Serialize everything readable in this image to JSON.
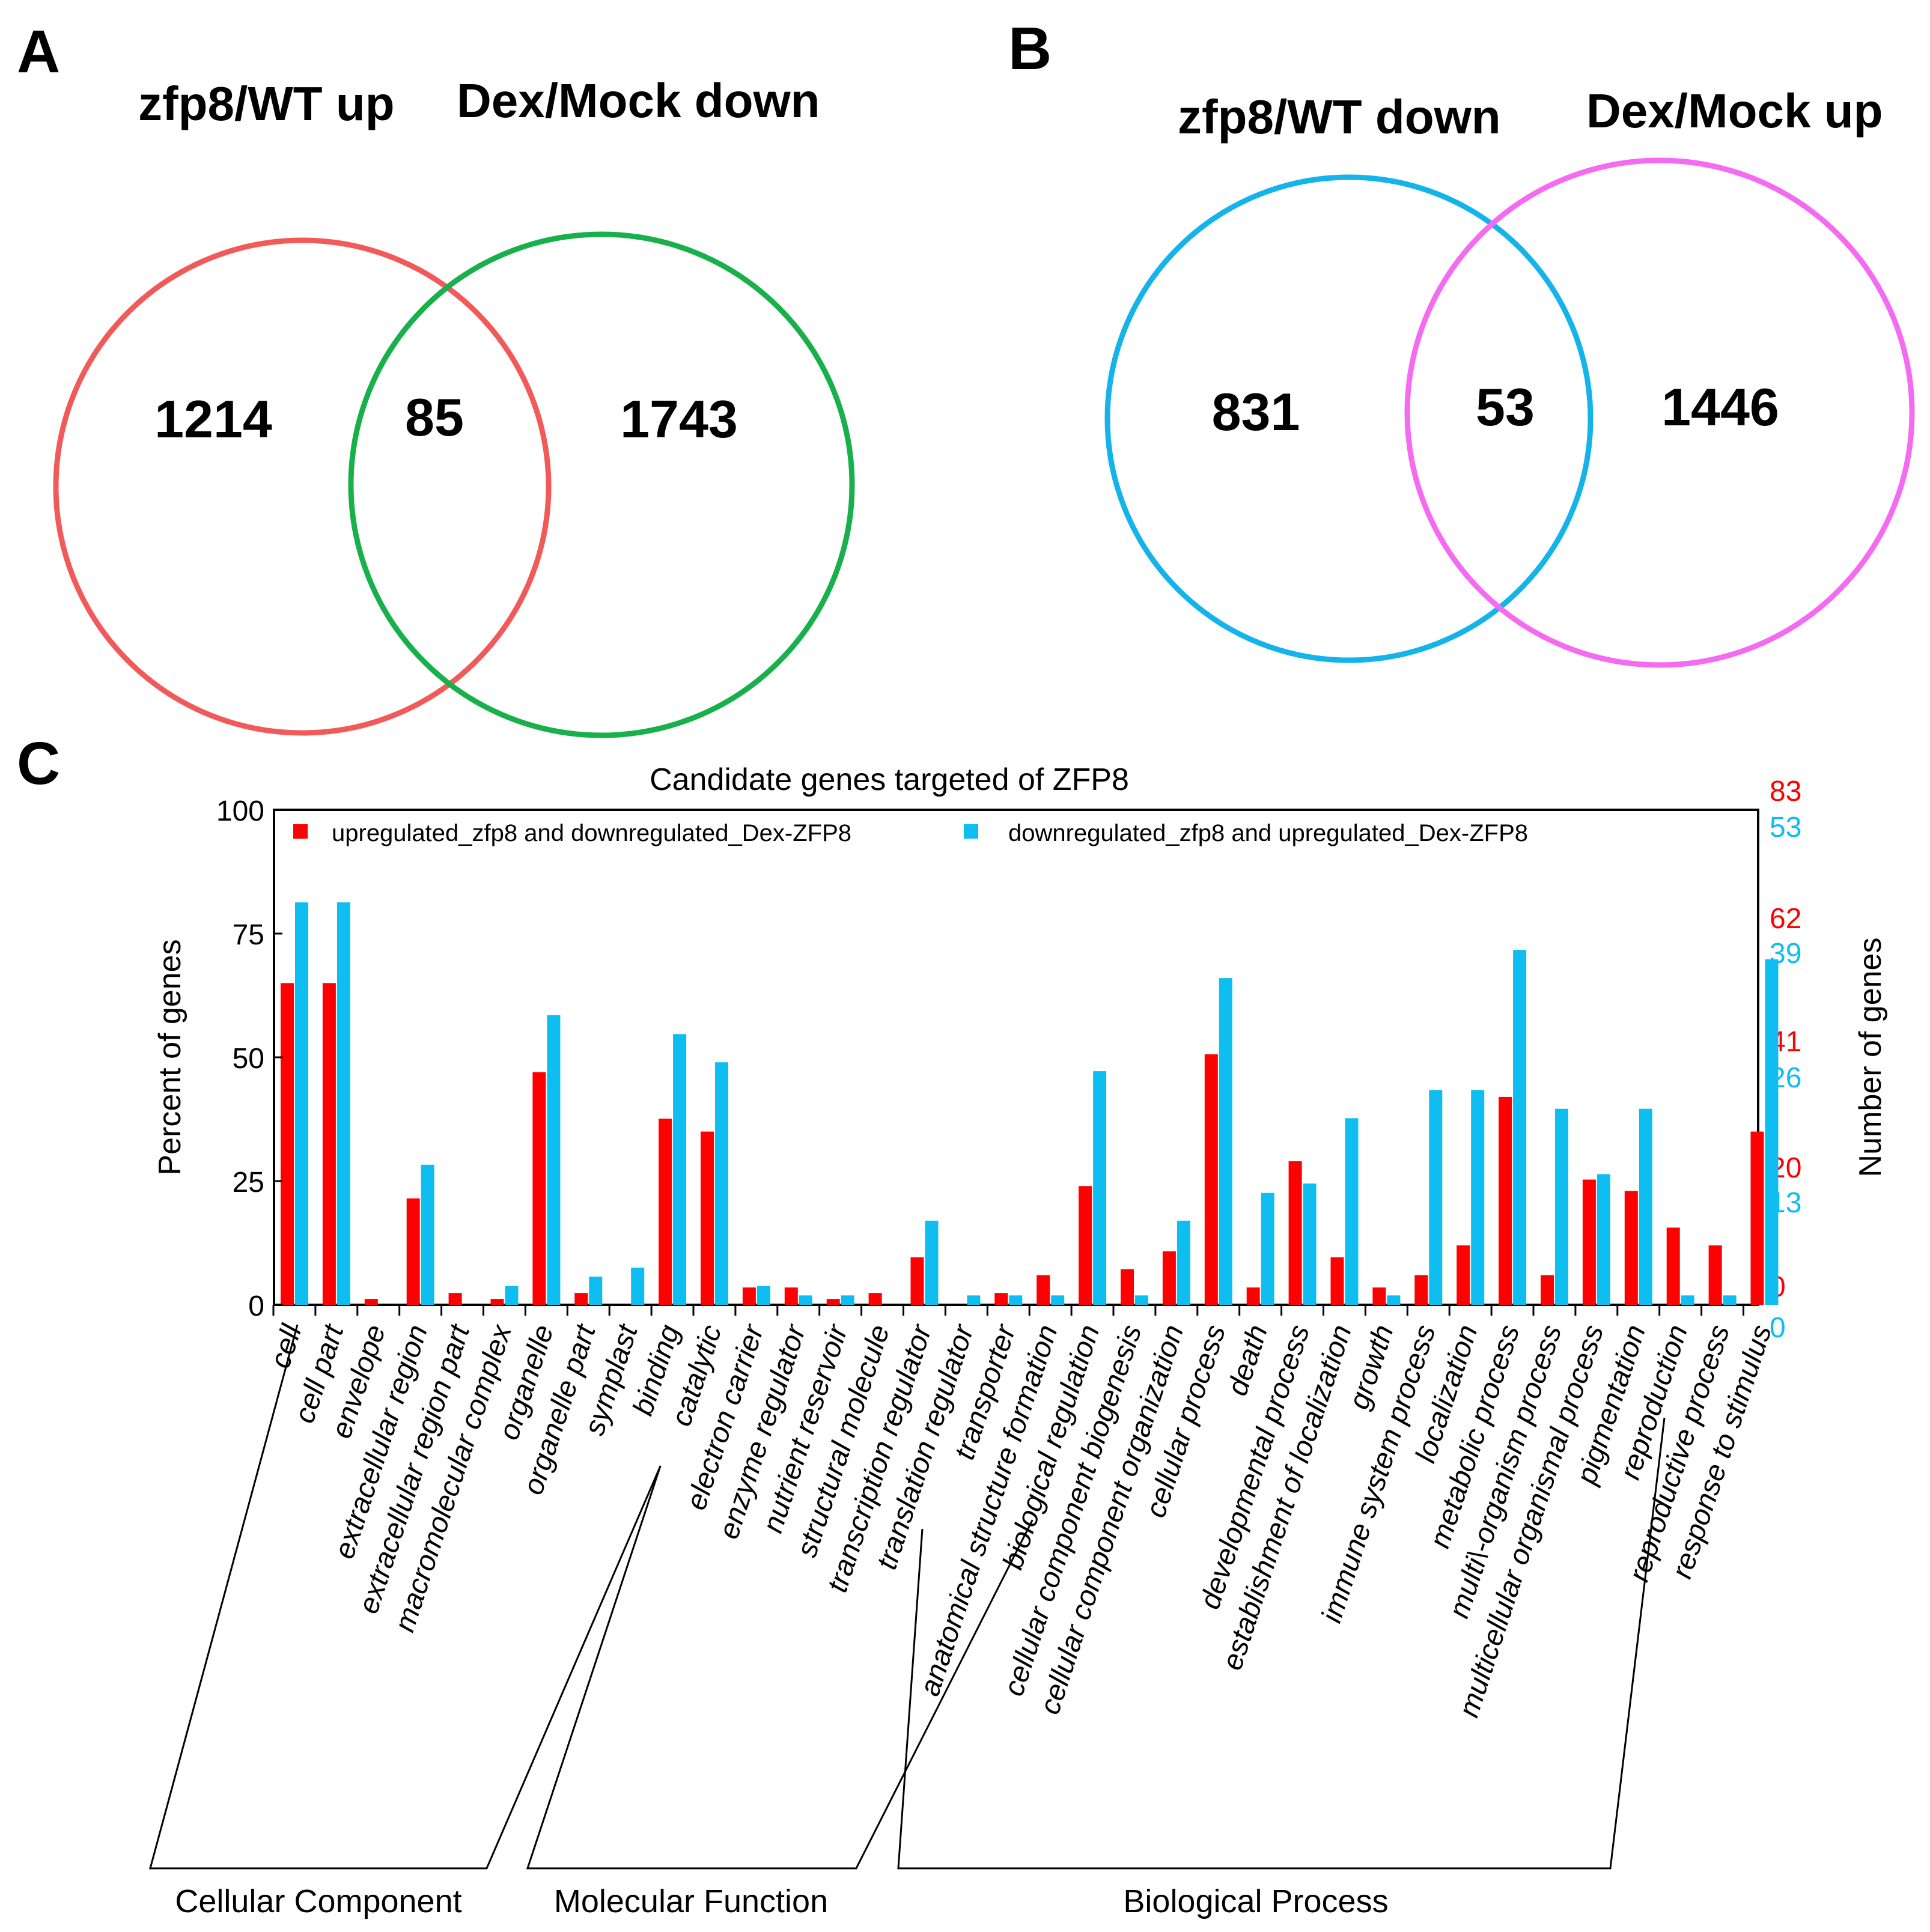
{
  "panels": {
    "A": {
      "letter": "A",
      "left_title": "zfp8/WT up",
      "right_title": "Dex/Mock down",
      "left_only": "1214",
      "overlap": "85",
      "right_only": "1743",
      "left_color": "#f25a5a",
      "right_color": "#18b04a"
    },
    "B": {
      "letter": "B",
      "left_title": "zfp8/WT down",
      "right_title": "Dex/Mock up",
      "left_only": "831",
      "overlap": "53",
      "right_only": "1446",
      "left_color": "#14b4ea",
      "right_color": "#f46af0"
    },
    "C": {
      "letter": "C"
    }
  },
  "chart_data": {
    "type": "bar",
    "title": "Candidate genes targeted of ZFP8",
    "ylabel": "Percent of genes",
    "y2label": "Number of genes",
    "ylim": [
      0,
      100
    ],
    "yticks": [
      "0",
      "25",
      "50",
      "75",
      "100"
    ],
    "right_ticks_red": [
      "0",
      "20",
      "41",
      "62",
      "83"
    ],
    "right_ticks_blue": [
      "0",
      "13",
      "26",
      "39",
      "53"
    ],
    "red_color": "#ff0000",
    "blue_color": "#0fbef0",
    "categories": [
      "cell",
      "cell part",
      "envelope",
      "extracellular region",
      "extracellular region part",
      "macromolecular complex",
      "organelle",
      "organelle part",
      "symplast",
      "binding",
      "catalytic",
      "electron carrier",
      "enzyme regulator",
      "nutrient reservoir",
      "structural molecule",
      "transcription regulator",
      "translation regulator",
      "transporter",
      "anatomical structure formation",
      "biological regulation",
      "cellular component biogenesis",
      "cellular component organization",
      "cellular process",
      "death",
      "developmental process",
      "establishment of localization",
      "growth",
      "immune system process",
      "localization",
      "metabolic process",
      "multi\\-organism process",
      "multicellular organismal process",
      "pigmentation",
      "reproduction",
      "reproductive process",
      "response to stimulus"
    ],
    "series": [
      {
        "name": "upregulated_zfp8 and downregulated_Dex-ZFP8",
        "color": "#ff0000",
        "values": [
          65,
          65,
          1.2,
          21.5,
          2.4,
          1.2,
          47,
          2.4,
          0,
          37.6,
          35,
          3.5,
          3.5,
          1.2,
          2.4,
          9.6,
          0,
          2.4,
          6,
          24,
          7.2,
          10.8,
          50.6,
          3.5,
          29,
          9.6,
          3.5,
          6,
          12,
          42,
          6,
          25.3,
          23,
          15.6,
          12,
          35
        ]
      },
      {
        "name": "downregulated_zfp8 and upregulated_Dex-ZFP8",
        "color": "#0fbef0",
        "values": [
          81.3,
          81.3,
          0,
          28.3,
          0,
          3.8,
          58.5,
          5.7,
          7.5,
          54.7,
          49,
          3.8,
          1.9,
          1.9,
          0,
          17,
          1.9,
          1.9,
          1.9,
          47.2,
          1.9,
          17,
          66,
          22.6,
          24.5,
          37.7,
          1.9,
          43.4,
          43.4,
          71.7,
          39.6,
          26.4,
          39.6,
          1.9,
          1.9,
          69.8
        ]
      }
    ],
    "groups": [
      {
        "label": "Cellular Component",
        "start": 0,
        "end": 8
      },
      {
        "label": "Molecular Function",
        "start": 9,
        "end": 17
      },
      {
        "label": "Biological Process",
        "start": 18,
        "end": 35
      }
    ]
  }
}
